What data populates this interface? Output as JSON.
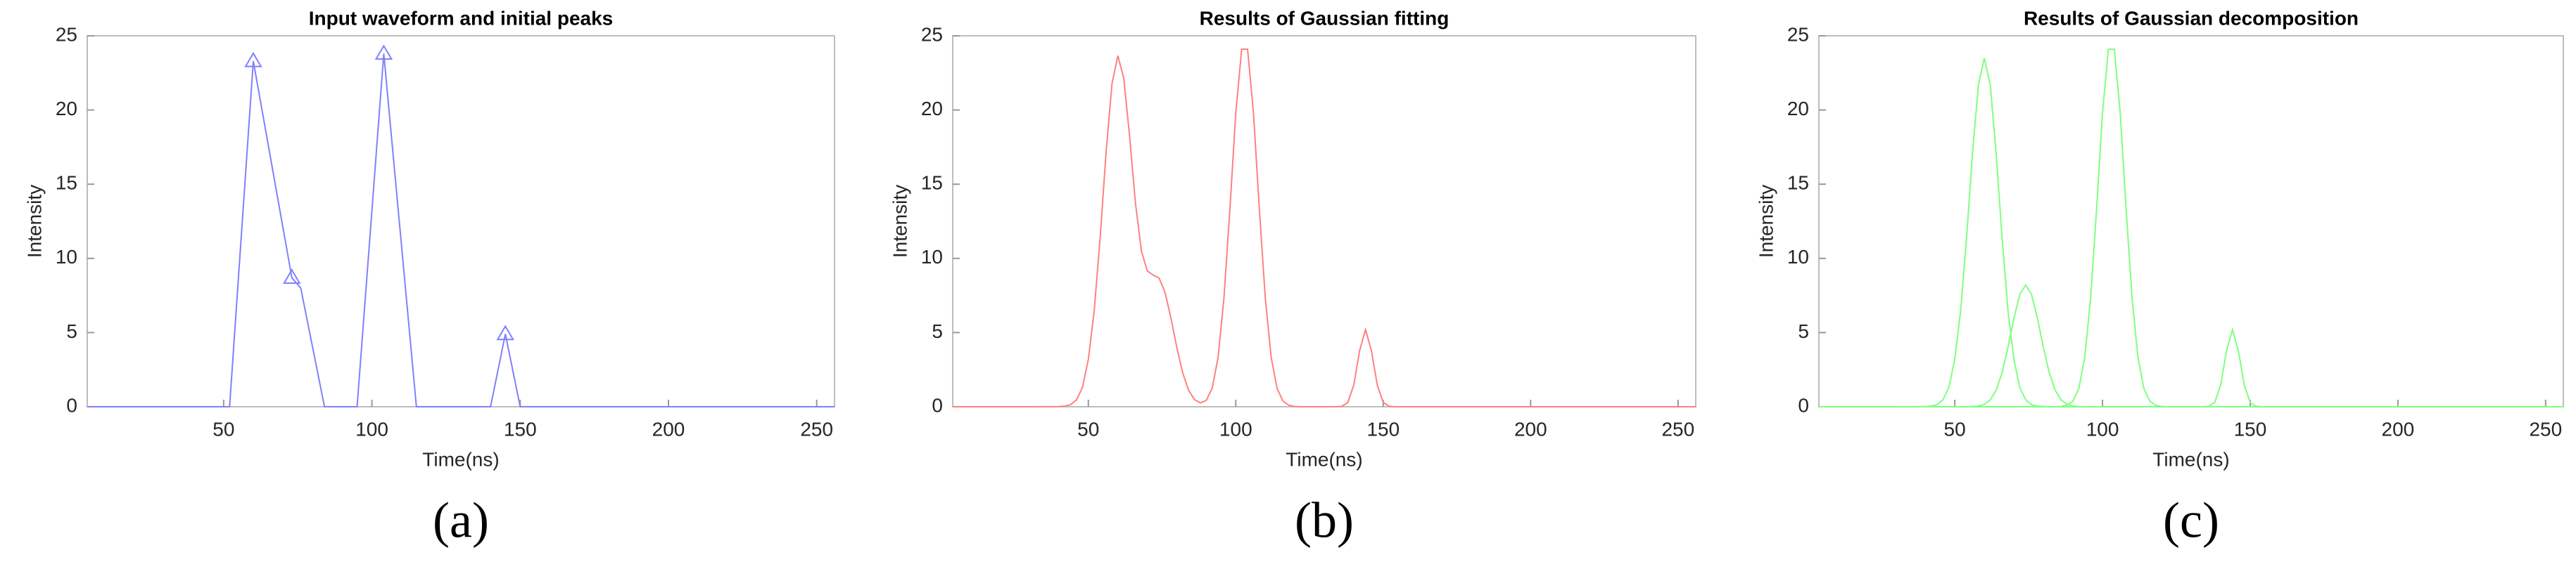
{
  "chart_data": [
    {
      "type": "line",
      "title": "Input waveform and initial peaks",
      "xlabel": "Time(ns)",
      "ylabel": "Intensity",
      "caption": "(a)",
      "xlim": [
        4,
        256
      ],
      "ylim": [
        0,
        25
      ],
      "xticks": [
        50,
        100,
        150,
        200,
        250
      ],
      "yticks": [
        0,
        5,
        10,
        15,
        20,
        25
      ],
      "series": [
        {
          "color": "#8080ff",
          "style": "line",
          "x": [
            4,
            52,
            60,
            73,
            76,
            84,
            95,
            104,
            115,
            140,
            145,
            150,
            256
          ],
          "values": [
            0,
            0,
            23.3,
            8.7,
            8,
            0,
            0,
            23.8,
            0,
            0,
            4.9,
            0,
            0
          ]
        },
        {
          "color": "#8080ff",
          "style": "triangle",
          "x": [
            60,
            73,
            104,
            145
          ],
          "values": [
            23.3,
            8.7,
            23.8,
            4.9
          ]
        }
      ]
    },
    {
      "type": "line",
      "title": "Results of Gaussian fitting",
      "xlabel": "Time(ns)",
      "ylabel": "Intensity",
      "caption": "(b)",
      "xlim": [
        4,
        256
      ],
      "ylim": [
        0,
        25
      ],
      "xticks": [
        50,
        100,
        150,
        200,
        250
      ],
      "yticks": [
        0,
        5,
        10,
        15,
        20,
        25
      ],
      "x": [
        4,
        30,
        40,
        42,
        44,
        46,
        48,
        50,
        52,
        54,
        56,
        58,
        60,
        62,
        64,
        66,
        68,
        70,
        72,
        74,
        76,
        78,
        80,
        82,
        84,
        86,
        88,
        90,
        92,
        94,
        96,
        98,
        100,
        102,
        104,
        106,
        108,
        110,
        112,
        114,
        116,
        118,
        120,
        122,
        124,
        130,
        134,
        136,
        138,
        140,
        142,
        144,
        146,
        148,
        150,
        152,
        154,
        160,
        200,
        256
      ],
      "series": [
        {
          "color": "#ff8080",
          "style": "line",
          "values": [
            0,
            0,
            0.01,
            0.04,
            0.14,
            0.47,
            1.3,
            3.2,
            6.5,
            11.4,
            17.11,
            21.75,
            23.66,
            22.16,
            18.21,
            13.68,
            10.49,
            9.15,
            8.87,
            8.67,
            7.71,
            5.99,
            4.0,
            2.28,
            1.11,
            0.48,
            0.26,
            0.43,
            1.25,
            3.33,
            7.36,
            13.3,
            19.8,
            24.1,
            24.1,
            19.8,
            13.3,
            7.36,
            3.33,
            1.24,
            0.38,
            0.1,
            0.02,
            0,
            0,
            0,
            0,
            0.03,
            0.29,
            1.45,
            3.78,
            5.2,
            3.78,
            1.45,
            0.29,
            0.03,
            0,
            0,
            0,
            0
          ]
        }
      ]
    },
    {
      "type": "line",
      "title": "Results of Gaussian decomposition",
      "xlabel": "Time(ns)",
      "ylabel": "Intensity",
      "caption": "(c)",
      "xlim": [
        4,
        256
      ],
      "ylim": [
        0,
        25
      ],
      "xticks": [
        50,
        100,
        150,
        200,
        250
      ],
      "yticks": [
        0,
        5,
        10,
        15,
        20,
        25
      ],
      "x": [
        4,
        30,
        40,
        42,
        44,
        46,
        48,
        50,
        52,
        54,
        56,
        58,
        60,
        62,
        64,
        66,
        68,
        70,
        72,
        74,
        76,
        78,
        80,
        82,
        84,
        86,
        88,
        90,
        92,
        94,
        96,
        98,
        100,
        102,
        104,
        106,
        108,
        110,
        112,
        114,
        116,
        118,
        120,
        122,
        124,
        130,
        134,
        136,
        138,
        140,
        142,
        144,
        146,
        148,
        150,
        152,
        154,
        160,
        200,
        256
      ],
      "series": [
        {
          "color": "#80ff80",
          "style": "line",
          "values": [
            0,
            0,
            0.01,
            0.04,
            0.14,
            0.47,
            1.3,
            3.2,
            6.5,
            11.4,
            17.1,
            21.7,
            23.5,
            21.7,
            17.1,
            11.4,
            6.5,
            3.2,
            1.3,
            0.47,
            0.14,
            0.04,
            0.01,
            0,
            0,
            0,
            0,
            0,
            0,
            0,
            0,
            0,
            0,
            0,
            0,
            0,
            0,
            0,
            0,
            0,
            0,
            0,
            0,
            0,
            0,
            0,
            0,
            0,
            0,
            0,
            0,
            0,
            0,
            0,
            0,
            0,
            0,
            0,
            0,
            0
          ]
        },
        {
          "color": "#80ff80",
          "style": "line",
          "values": [
            0,
            0,
            0,
            0,
            0,
            0,
            0,
            0,
            0,
            0,
            0.01,
            0.05,
            0.16,
            0.46,
            1.11,
            2.28,
            3.99,
            5.95,
            7.57,
            8.2,
            7.57,
            5.95,
            3.99,
            2.28,
            1.11,
            0.46,
            0.16,
            0.05,
            0.01,
            0,
            0,
            0,
            0,
            0,
            0,
            0,
            0,
            0,
            0,
            0,
            0,
            0,
            0,
            0,
            0,
            0,
            0,
            0,
            0,
            0,
            0,
            0,
            0,
            0,
            0,
            0,
            0,
            0,
            0,
            0
          ]
        },
        {
          "color": "#80ff80",
          "style": "line",
          "values": [
            0,
            0,
            0,
            0,
            0,
            0,
            0,
            0,
            0,
            0,
            0,
            0,
            0,
            0,
            0,
            0,
            0,
            0,
            0,
            0,
            0,
            0,
            0,
            0,
            0,
            0.02,
            0.1,
            0.38,
            1.24,
            3.33,
            7.36,
            13.3,
            19.8,
            24.1,
            24.1,
            19.8,
            13.3,
            7.36,
            3.33,
            1.24,
            0.38,
            0.1,
            0.02,
            0,
            0,
            0,
            0,
            0,
            0,
            0,
            0,
            0,
            0,
            0,
            0,
            0,
            0,
            0,
            0,
            0
          ]
        },
        {
          "color": "#80ff80",
          "style": "line",
          "values": [
            0,
            0,
            0,
            0,
            0,
            0,
            0,
            0,
            0,
            0,
            0,
            0,
            0,
            0,
            0,
            0,
            0,
            0,
            0,
            0,
            0,
            0,
            0,
            0,
            0,
            0,
            0,
            0,
            0,
            0,
            0,
            0,
            0,
            0,
            0,
            0,
            0,
            0,
            0,
            0,
            0,
            0,
            0,
            0,
            0,
            0,
            0,
            0.03,
            0.29,
            1.45,
            3.78,
            5.2,
            3.78,
            1.45,
            0.29,
            0.03,
            0,
            0,
            0,
            0
          ]
        }
      ]
    }
  ]
}
